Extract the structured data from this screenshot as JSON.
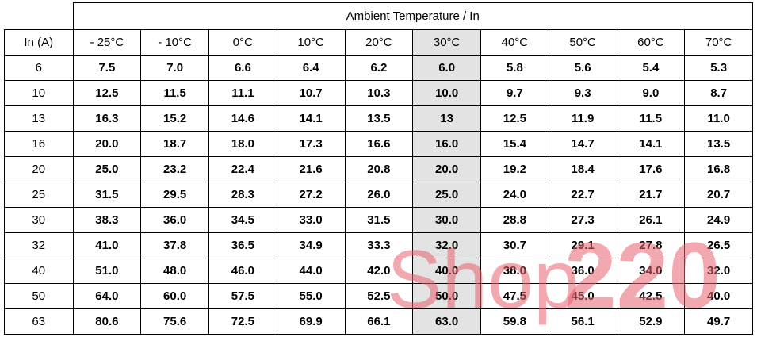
{
  "table": {
    "title": "Ambient Temperature / In",
    "header": [
      "In (A)",
      "- 25°C",
      "- 10°C",
      "0°C",
      "10°C",
      "20°C",
      "30°C",
      "40°C",
      "50°C",
      "60°C",
      "70°C"
    ],
    "rows": [
      [
        "6",
        "7.5",
        "7.0",
        "6.6",
        "6.4",
        "6.2",
        "6.0",
        "5.8",
        "5.6",
        "5.4",
        "5.3"
      ],
      [
        "10",
        "12.5",
        "11.5",
        "11.1",
        "10.7",
        "10.3",
        "10.0",
        "9.7",
        "9.3",
        "9.0",
        "8.7"
      ],
      [
        "13",
        "16.3",
        "15.2",
        "14.6",
        "14.1",
        "13.5",
        "13",
        "12.5",
        "11.9",
        "11.5",
        "11.0"
      ],
      [
        "16",
        "20.0",
        "18.7",
        "18.0",
        "17.3",
        "16.6",
        "16.0",
        "15.4",
        "14.7",
        "14.1",
        "13.5"
      ],
      [
        "20",
        "25.0",
        "23.2",
        "22.4",
        "21.6",
        "20.8",
        "20.0",
        "19.2",
        "18.4",
        "17.6",
        "16.8"
      ],
      [
        "25",
        "31.5",
        "29.5",
        "28.3",
        "27.2",
        "26.0",
        "25.0",
        "24.0",
        "22.7",
        "21.7",
        "20.7"
      ],
      [
        "30",
        "38.3",
        "36.0",
        "34.5",
        "33.0",
        "31.5",
        "30.0",
        "28.8",
        "27.3",
        "26.1",
        "24.9"
      ],
      [
        "32",
        "41.0",
        "37.8",
        "36.5",
        "34.9",
        "33.3",
        "32.0",
        "30.7",
        "29.1",
        "27.8",
        "26.5"
      ],
      [
        "40",
        "51.0",
        "48.0",
        "46.0",
        "44.0",
        "42.0",
        "40.0",
        "38.0",
        "36.0",
        "34.0",
        "32.0"
      ],
      [
        "50",
        "64.0",
        "60.0",
        "57.5",
        "55.0",
        "52.5",
        "50.0",
        "47.5",
        "45.0",
        "42.5",
        "40.0"
      ],
      [
        "63",
        "80.6",
        "75.6",
        "72.5",
        "69.9",
        "66.1",
        "63.0",
        "59.8",
        "56.1",
        "52.9",
        "49.7"
      ]
    ]
  },
  "watermark": {
    "part1": "Shop",
    "part2": "220"
  }
}
